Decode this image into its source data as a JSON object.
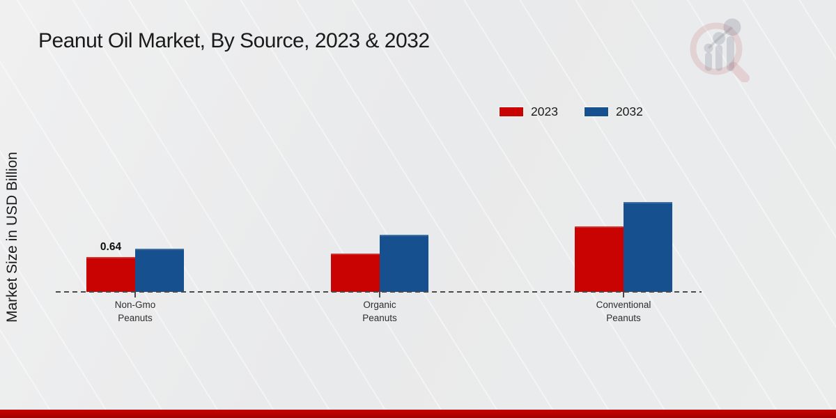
{
  "title": "Peanut Oil Market, By Source, 2023 & 2032",
  "y_axis_label": "Market Size in USD Billion",
  "legend": {
    "items": [
      {
        "label": "2023",
        "color": "#c90302"
      },
      {
        "label": "2032",
        "color": "#16508e"
      }
    ]
  },
  "watermark": {
    "icon": "market-research-future-logo"
  },
  "chart_data": {
    "type": "bar",
    "title": "Peanut Oil Market, By Source, 2023 & 2032",
    "ylabel": "Market Size in USD Billion",
    "units": "USD Billion",
    "categories": [
      "Non-Gmo Peanuts",
      "Organic Peanuts",
      "Conventional Peanuts"
    ],
    "category_lines": [
      [
        "Non-Gmo",
        "Peanuts"
      ],
      [
        "Organic",
        "Peanuts"
      ],
      [
        "Conventional",
        "Peanuts"
      ]
    ],
    "series": [
      {
        "name": "2023",
        "color": "#c90302",
        "values": [
          0.64,
          0.7,
          1.2
        ]
      },
      {
        "name": "2032",
        "color": "#16508e",
        "values": [
          0.8,
          1.05,
          1.65
        ]
      }
    ],
    "data_labels": [
      {
        "series_index": 0,
        "category_index": 0,
        "text": "0.64"
      }
    ],
    "baseline": {
      "style": "dashed",
      "value": 0
    },
    "legend_position": "top-right",
    "grid": false,
    "ylim": [
      0,
      2
    ]
  }
}
